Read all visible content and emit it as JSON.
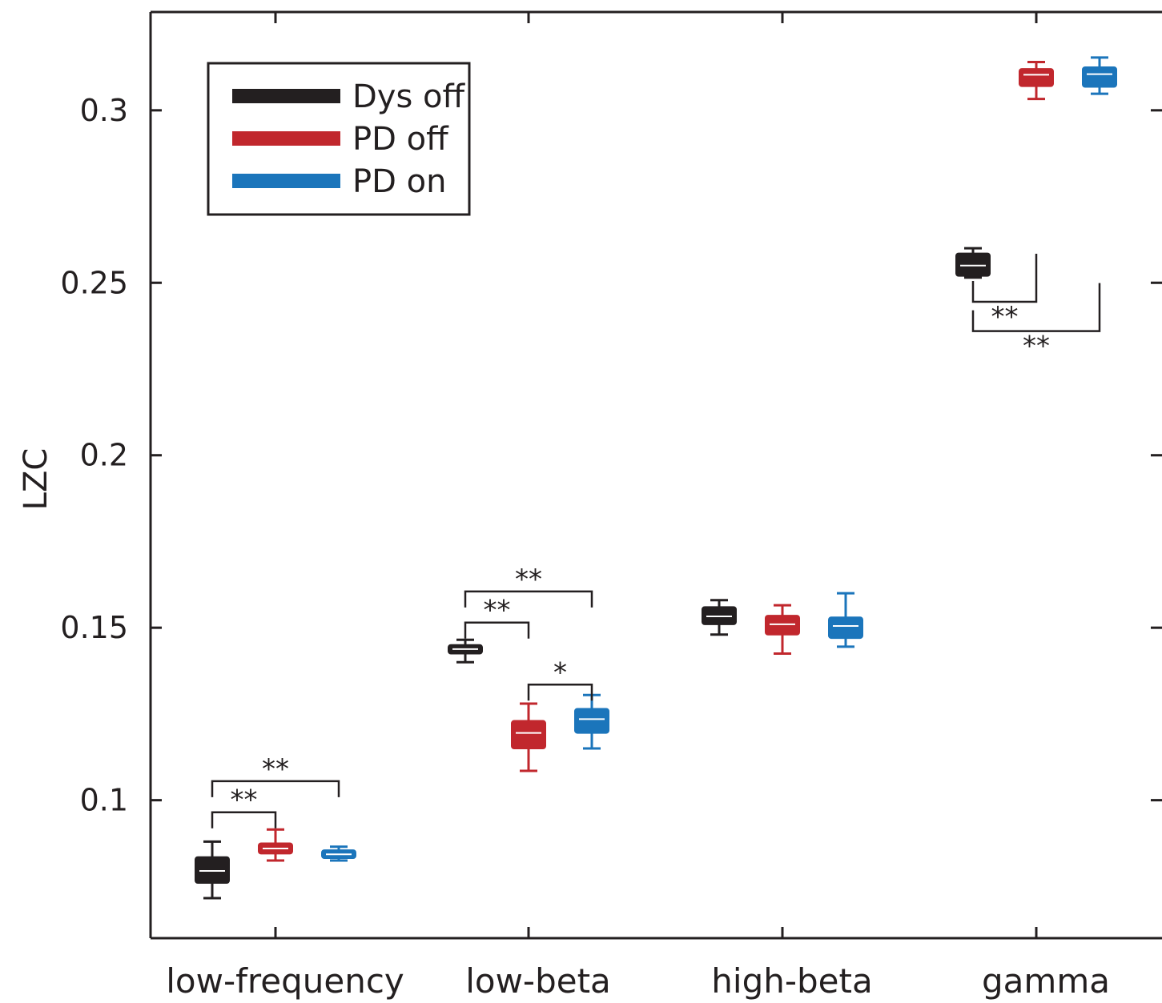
{
  "chart_data": {
    "type": "box",
    "title": "",
    "xlabel": "",
    "ylabel": "LZC",
    "ylim": [
      0.06,
      0.3285
    ],
    "yticks": [
      {
        "value": 0.1,
        "label": "0.1"
      },
      {
        "value": 0.15,
        "label": "0.15"
      },
      {
        "value": 0.2,
        "label": "0.2"
      },
      {
        "value": 0.25,
        "label": "0.25"
      },
      {
        "value": 0.3,
        "label": "0.3"
      }
    ],
    "categories": [
      "low-frequency",
      "low-beta",
      "high-beta",
      "gamma"
    ],
    "legend": {
      "position": "top-left"
    },
    "colors": {
      "Dys off": "#231f20",
      "PD off": "#c1272d",
      "PD on": "#1b75bb",
      "median": "#ffffff",
      "axis": "#231f20"
    },
    "series": [
      {
        "name": "Dys off",
        "boxes": [
          {
            "min": 0.0716,
            "q1": 0.076,
            "median": 0.0795,
            "q3": 0.0835,
            "max": 0.088
          },
          {
            "min": 0.14,
            "q1": 0.1425,
            "median": 0.1438,
            "q3": 0.145,
            "max": 0.1465
          },
          {
            "min": 0.148,
            "q1": 0.151,
            "median": 0.1533,
            "q3": 0.156,
            "max": 0.158
          },
          {
            "min": 0.2515,
            "q1": 0.252,
            "median": 0.255,
            "q3": 0.2585,
            "max": 0.26
          }
        ]
      },
      {
        "name": "PD off",
        "boxes": [
          {
            "min": 0.0825,
            "q1": 0.0845,
            "median": 0.086,
            "q3": 0.0875,
            "max": 0.0915
          },
          {
            "min": 0.1085,
            "q1": 0.115,
            "median": 0.1195,
            "q3": 0.123,
            "max": 0.128
          },
          {
            "min": 0.1425,
            "q1": 0.148,
            "median": 0.151,
            "q3": 0.1535,
            "max": 0.1565
          },
          {
            "min": 0.3033,
            "q1": 0.307,
            "median": 0.3103,
            "q3": 0.312,
            "max": 0.314
          }
        ]
      },
      {
        "name": "PD on",
        "boxes": [
          {
            "min": 0.0825,
            "q1": 0.0832,
            "median": 0.0843,
            "q3": 0.0855,
            "max": 0.0865
          },
          {
            "min": 0.115,
            "q1": 0.1195,
            "median": 0.1235,
            "q3": 0.1265,
            "max": 0.1305
          },
          {
            "min": 0.1445,
            "q1": 0.147,
            "median": 0.1505,
            "q3": 0.153,
            "max": 0.16
          },
          {
            "min": 0.3048,
            "q1": 0.3068,
            "median": 0.3105,
            "q3": 0.3125,
            "max": 0.3153
          }
        ]
      }
    ],
    "significance": [
      {
        "category": "low-frequency",
        "from": "Dys off",
        "to": "PD off",
        "label": "**",
        "y": 0.0965
      },
      {
        "category": "low-frequency",
        "from": "Dys off",
        "to": "PD on",
        "label": "**",
        "y": 0.1055
      },
      {
        "category": "low-beta",
        "from": "Dys off",
        "to": "PD off",
        "label": "**",
        "y": 0.1515
      },
      {
        "category": "low-beta",
        "from": "Dys off",
        "to": "PD on",
        "label": "**",
        "y": 0.1605
      },
      {
        "category": "low-beta",
        "from": "PD off",
        "to": "PD on",
        "label": "*",
        "y": 0.1335
      },
      {
        "category": "gamma",
        "from": "Dys off",
        "to": "PD off",
        "label": "**",
        "y": 0.2445,
        "below": true
      },
      {
        "category": "gamma",
        "from": "Dys off",
        "to": "PD on",
        "label": "**",
        "y": 0.236,
        "below": true
      }
    ]
  }
}
